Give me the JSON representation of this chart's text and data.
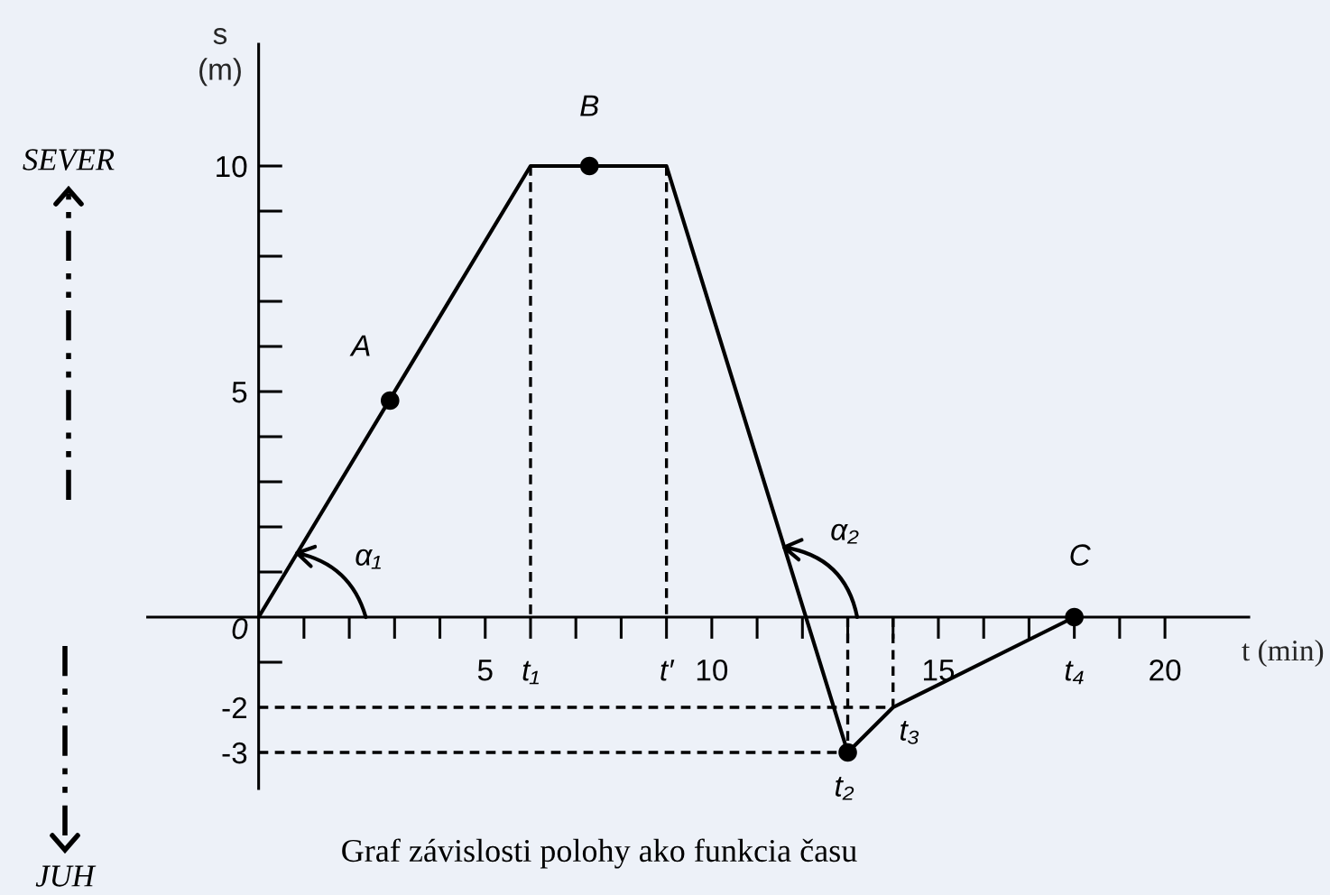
{
  "chart_data": {
    "type": "line",
    "xlabel": "t (min)",
    "ylabel": "s\n(m)",
    "line_style": "solid",
    "xlim": [
      -2.45,
      21.85
    ],
    "ylim": [
      -3.8,
      12.7
    ],
    "xticks": [
      {
        "value": 1,
        "label": null
      },
      {
        "value": 2,
        "label": null
      },
      {
        "value": 3,
        "label": null
      },
      {
        "value": 4,
        "label": null
      },
      5,
      {
        "value": 6,
        "label": "t₁"
      },
      {
        "value": 7,
        "label": null
      },
      {
        "value": 8,
        "label": null
      },
      {
        "value": 9,
        "label": "t′"
      },
      10,
      {
        "value": 11,
        "label": null
      },
      {
        "value": 12,
        "label": null
      },
      {
        "value": 13,
        "label": null
      },
      {
        "value": 14,
        "label": null
      },
      15,
      {
        "value": 16,
        "label": null
      },
      {
        "value": 17,
        "label": null
      },
      {
        "value": 18,
        "label": "t₄"
      },
      {
        "value": 19,
        "label": null
      },
      20
    ],
    "yticks": [
      -3,
      -2,
      {
        "value": -1,
        "label": null
      },
      0,
      {
        "value": 1,
        "label": null
      },
      {
        "value": 2,
        "label": null
      },
      {
        "value": 3,
        "label": null
      },
      {
        "value": 4,
        "label": null
      },
      5,
      {
        "value": 6,
        "label": null
      },
      {
        "value": 7,
        "label": null
      },
      {
        "value": 8,
        "label": null
      },
      {
        "value": 9,
        "label": null
      },
      10
    ],
    "series": [
      {
        "color": "#000000",
        "x": [
          0,
          6,
          9,
          13,
          14,
          18
        ],
        "values": [
          0,
          10,
          10,
          -3,
          -2,
          0
        ]
      },
      {
        "color": "#000000",
        "line_style": "dashed",
        "x": [
          6,
          6
        ],
        "values": [
          10,
          0
        ]
      },
      {
        "color": "#000000",
        "line_style": "dashed",
        "x": [
          9,
          9
        ],
        "values": [
          10,
          0
        ]
      },
      {
        "color": "#000000",
        "line_style": "dashed",
        "x": [
          0,
          13,
          13
        ],
        "values": [
          -3,
          -3,
          0
        ]
      },
      {
        "color": "#000000",
        "line_style": "dashed",
        "x": [
          0,
          14,
          14
        ],
        "values": [
          -2,
          -2,
          0
        ]
      },
      {
        "type": "scatter",
        "color": "#000000",
        "marker": "circle",
        "x": [
          2.9,
          7.3,
          13,
          18
        ],
        "values": [
          4.8,
          10,
          -3,
          0
        ]
      }
    ],
    "annotations": [
      {
        "text": "A",
        "x": 2.9,
        "y": 4.8
      },
      {
        "text": "B",
        "x": 7.3,
        "y": 10
      },
      {
        "text": "C",
        "x": 18,
        "y": 0
      },
      {
        "text": "t₂",
        "x": 13,
        "y": -3
      },
      {
        "text": "t₃",
        "x": 14,
        "y": -2
      },
      "α₁",
      "α₂",
      "SEVER",
      "JUH",
      "Graf závislosti polohy ako funkcia času"
    ]
  }
}
